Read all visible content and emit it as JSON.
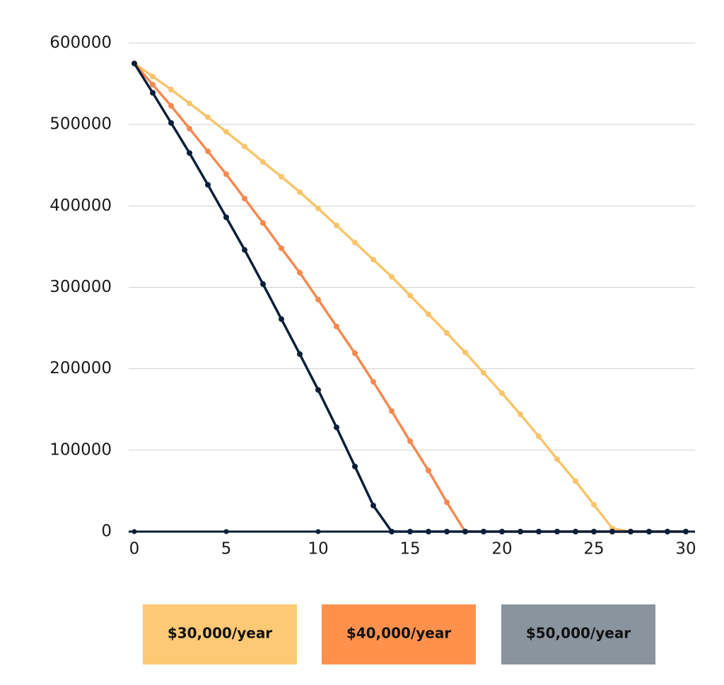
{
  "chart_data": {
    "type": "line",
    "x": [
      0,
      1,
      2,
      3,
      4,
      5,
      6,
      7,
      8,
      9,
      10,
      11,
      12,
      13,
      14,
      15,
      16,
      17,
      18,
      19,
      20,
      21,
      22,
      23,
      24,
      25,
      26,
      27,
      28,
      29,
      30
    ],
    "series": [
      {
        "name": "$30,000/year",
        "color": "#f9c46b",
        "legend_color": "#fdc975",
        "values": [
          575000,
          559000,
          543000,
          526000,
          509000,
          491000,
          473000,
          454000,
          436000,
          417000,
          397000,
          376000,
          355000,
          334000,
          313000,
          290000,
          267000,
          244000,
          220000,
          195000,
          170000,
          144000,
          117000,
          89000,
          62000,
          33000,
          4000,
          0,
          0,
          0,
          0
        ]
      },
      {
        "name": "$40,000/year",
        "color": "#f4894f",
        "legend_color": "#ff914d",
        "values": [
          575000,
          549000,
          523000,
          495000,
          467000,
          439000,
          409000,
          379000,
          348000,
          318000,
          285000,
          252000,
          219000,
          184000,
          148000,
          111000,
          75000,
          36000,
          0,
          0,
          0,
          0,
          0,
          0,
          0,
          0,
          0,
          0,
          0,
          0,
          0
        ]
      },
      {
        "name": "$50,000/year",
        "color": "#0b1f3a",
        "legend_color": "#8a949f",
        "values": [
          575000,
          539000,
          502000,
          465000,
          426000,
          386000,
          346000,
          304000,
          261000,
          218000,
          174000,
          128000,
          80000,
          32000,
          0,
          0,
          0,
          0,
          0,
          0,
          0,
          0,
          0,
          0,
          0,
          0,
          0,
          0,
          0,
          0,
          0
        ]
      }
    ],
    "xlim": [
      0,
      30
    ],
    "xticks": [
      0,
      5,
      10,
      15,
      20,
      25,
      30
    ],
    "ylim": [
      0,
      600000
    ],
    "yticks": [
      0,
      100000,
      200000,
      300000,
      400000,
      500000,
      600000
    ],
    "grid": true,
    "axis_color": "#0b1f3a"
  }
}
